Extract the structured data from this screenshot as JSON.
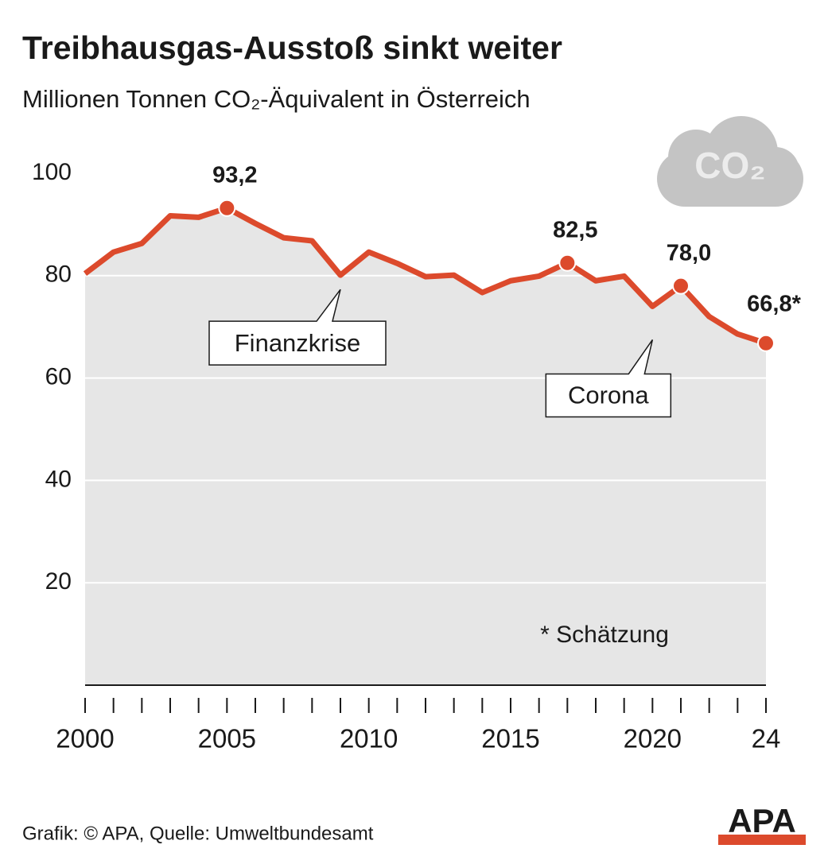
{
  "chart_data": {
    "type": "line",
    "title": "Treibhausgas-Ausstoß sinkt weiter",
    "subtitle": "Millionen Tonnen CO₂-Äquivalent in Österreich",
    "x": [
      2000,
      2001,
      2002,
      2003,
      2004,
      2005,
      2006,
      2007,
      2008,
      2009,
      2010,
      2011,
      2012,
      2013,
      2014,
      2015,
      2016,
      2017,
      2018,
      2019,
      2020,
      2021,
      2022,
      2023,
      2024
    ],
    "series": [
      {
        "name": null,
        "color": "#dc4a2c",
        "values": [
          80.4,
          84.6,
          86.3,
          91.7,
          91.4,
          93.2,
          90.2,
          87.4,
          86.8,
          80.1,
          84.6,
          82.4,
          79.8,
          80.1,
          76.7,
          79.0,
          79.9,
          82.5,
          79.0,
          79.9,
          74.0,
          78.0,
          72.0,
          68.6,
          66.8
        ],
        "value_labels": [
          null,
          null,
          null,
          null,
          null,
          "93,2",
          null,
          null,
          null,
          null,
          null,
          null,
          null,
          null,
          null,
          null,
          null,
          "82,5",
          null,
          null,
          null,
          "78,0",
          null,
          null,
          "66,8*"
        ]
      }
    ],
    "xlim": [
      2000,
      2024
    ],
    "xticks": [
      2000,
      2005,
      2010,
      2015,
      2020,
      {
        "value": 2024,
        "label": "24"
      }
    ],
    "ylim": [
      0,
      100
    ],
    "yticks": [
      20,
      40,
      60,
      80,
      100
    ],
    "grid": true,
    "annotations": [
      {
        "x": 2009,
        "text": "Finanzkrise"
      },
      {
        "x": 2020,
        "text": "Corona"
      }
    ],
    "note": "* Schätzung",
    "icon_text": "CO₂",
    "source": "Grafik: © APA, Quelle: Umweltbundesamt",
    "logo": "APA"
  }
}
